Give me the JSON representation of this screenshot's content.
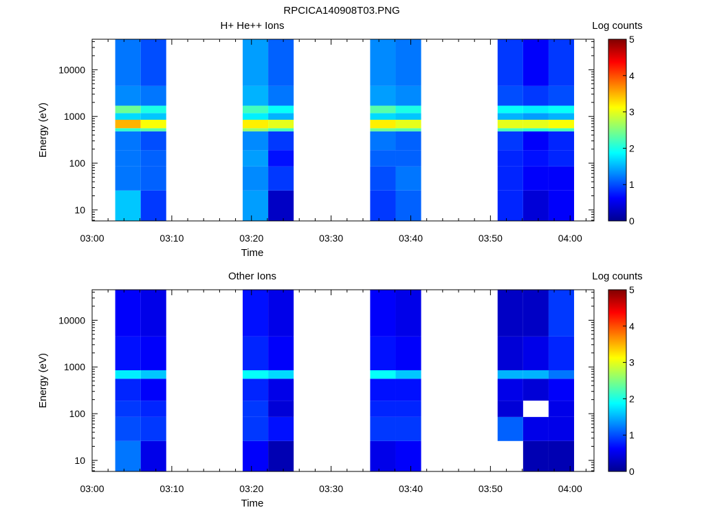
{
  "figure_title": "RPCICA140908T03.PNG",
  "colors": {
    "colormap": [
      "#00008f",
      "#0000ff",
      "#0080ff",
      "#00ffff",
      "#80ff80",
      "#ffff00",
      "#ff8000",
      "#ff0000",
      "#800000"
    ],
    "gap": "#ffffff"
  },
  "chart_data": [
    {
      "type": "heatmap",
      "title": "H+ He++ Ions",
      "xlabel": "Time",
      "ylabel": "Energy (eV)",
      "x_tick_labels": [
        "03:00",
        "03:10",
        "03:20",
        "03:30",
        "03:40",
        "03:50",
        "04:00"
      ],
      "x_ticks_minutes": [
        0,
        10,
        20,
        30,
        40,
        50,
        60
      ],
      "xlim_minutes": [
        0,
        63
      ],
      "y_scale": "log",
      "y_tick_labels": [
        "10",
        "100",
        "1000",
        "10000"
      ],
      "y_ticks": [
        10,
        100,
        1000,
        10000
      ],
      "ylim": [
        5.8,
        45000
      ],
      "colorbar": {
        "label": "Log counts",
        "range": [
          0,
          5
        ],
        "tick_labels": [
          "0",
          "1",
          "2",
          "3",
          "4",
          "5"
        ]
      },
      "energy_bands": [
        {
          "lo": 5.8,
          "hi": 26
        },
        {
          "lo": 26,
          "hi": 85
        },
        {
          "lo": 85,
          "hi": 190
        },
        {
          "lo": 190,
          "hi": 480
        },
        {
          "lo": 480,
          "hi": 560
        },
        {
          "lo": 560,
          "hi": 850
        },
        {
          "lo": 850,
          "hi": 1180
        },
        {
          "lo": 1180,
          "hi": 1700
        },
        {
          "lo": 1700,
          "hi": 4500
        },
        {
          "lo": 4500,
          "hi": 45000
        }
      ],
      "time_bins": [
        {
          "start_min": 2.9,
          "end_min": 6.1,
          "levels": [
            1.6,
            1.2,
            1.2,
            1.2,
            2.1,
            3.5,
            1.7,
            2.4,
            1.3,
            1.2
          ]
        },
        {
          "start_min": 6.1,
          "end_min": 9.3,
          "levels": [
            0.9,
            1.1,
            1.1,
            1.0,
            2.3,
            3.1,
            1.6,
            2.0,
            1.2,
            1.0
          ]
        },
        {
          "start_min": 18.9,
          "end_min": 22.1,
          "levels": [
            1.4,
            1.3,
            1.4,
            1.3,
            2.6,
            3.2,
            1.8,
            2.2,
            1.5,
            1.4
          ]
        },
        {
          "start_min": 22.1,
          "end_min": 25.3,
          "levels": [
            0.3,
            0.9,
            0.7,
            0.9,
            2.2,
            3.0,
            1.5,
            1.9,
            1.2,
            1.1
          ]
        },
        {
          "start_min": 34.9,
          "end_min": 38.1,
          "levels": [
            0.9,
            1.0,
            1.1,
            1.2,
            2.4,
            3.2,
            1.7,
            2.3,
            1.4,
            1.3
          ]
        },
        {
          "start_min": 38.1,
          "end_min": 41.3,
          "levels": [
            1.1,
            1.2,
            1.1,
            1.1,
            2.3,
            3.0,
            1.6,
            2.0,
            1.3,
            1.2
          ]
        },
        {
          "start_min": 50.9,
          "end_min": 54.1,
          "levels": [
            0.8,
            0.8,
            0.8,
            0.9,
            2.2,
            3.0,
            1.5,
            1.9,
            1.0,
            0.9
          ]
        },
        {
          "start_min": 54.1,
          "end_min": 57.3,
          "levels": [
            0.4,
            0.6,
            0.7,
            0.6,
            2.1,
            3.0,
            1.4,
            1.8,
            0.9,
            0.6
          ]
        },
        {
          "start_min": 57.3,
          "end_min": 60.5,
          "levels": [
            0.6,
            0.6,
            0.8,
            0.8,
            2.2,
            3.1,
            1.5,
            1.9,
            1.0,
            0.9
          ]
        }
      ]
    },
    {
      "type": "heatmap",
      "title": "Other Ions",
      "xlabel": "Time",
      "ylabel": "Energy (eV)",
      "x_tick_labels": [
        "03:00",
        "03:10",
        "03:20",
        "03:30",
        "03:40",
        "03:50",
        "04:00"
      ],
      "x_ticks_minutes": [
        0,
        10,
        20,
        30,
        40,
        50,
        60
      ],
      "xlim_minutes": [
        0,
        63
      ],
      "y_scale": "log",
      "y_tick_labels": [
        "10",
        "100",
        "1000",
        "10000"
      ],
      "y_ticks": [
        10,
        100,
        1000,
        10000
      ],
      "ylim": [
        5.8,
        45000
      ],
      "colorbar": {
        "label": "Log counts",
        "range": [
          0,
          5
        ],
        "tick_labels": [
          "0",
          "1",
          "2",
          "3",
          "4",
          "5"
        ]
      },
      "energy_bands": [
        {
          "lo": 5.8,
          "hi": 26
        },
        {
          "lo": 26,
          "hi": 85
        },
        {
          "lo": 85,
          "hi": 190
        },
        {
          "lo": 190,
          "hi": 560
        },
        {
          "lo": 560,
          "hi": 850
        },
        {
          "lo": 850,
          "hi": 4500
        },
        {
          "lo": 4500,
          "hi": 45000
        }
      ],
      "time_bins": [
        {
          "start_min": 2.9,
          "end_min": 6.1,
          "levels": [
            1.2,
            1.0,
            0.9,
            0.8,
            1.8,
            0.7,
            0.6
          ]
        },
        {
          "start_min": 6.1,
          "end_min": 9.3,
          "levels": [
            0.5,
            0.9,
            0.8,
            0.6,
            1.6,
            0.6,
            0.5
          ]
        },
        {
          "start_min": 18.9,
          "end_min": 22.1,
          "levels": [
            0.6,
            0.9,
            0.9,
            0.8,
            1.9,
            0.8,
            0.7
          ]
        },
        {
          "start_min": 22.1,
          "end_min": 25.3,
          "levels": [
            0.2,
            0.7,
            0.4,
            0.5,
            1.7,
            0.6,
            0.5
          ]
        },
        {
          "start_min": 34.9,
          "end_min": 38.1,
          "levels": [
            0.5,
            0.9,
            0.8,
            0.7,
            1.9,
            0.7,
            0.6
          ]
        },
        {
          "start_min": 38.1,
          "end_min": 41.3,
          "levels": [
            0.6,
            0.9,
            0.8,
            0.7,
            1.6,
            0.6,
            0.5
          ]
        },
        {
          "start_min": 50.9,
          "end_min": 54.1,
          "levels": [
            null,
            1.1,
            0.4,
            0.5,
            1.5,
            0.4,
            0.3
          ]
        },
        {
          "start_min": 54.1,
          "end_min": 57.3,
          "levels": [
            0.2,
            0.5,
            null,
            0.4,
            1.5,
            0.5,
            0.3
          ]
        },
        {
          "start_min": 57.3,
          "end_min": 60.5,
          "levels": [
            0.2,
            0.5,
            0.5,
            0.6,
            1.2,
            0.8,
            0.9
          ]
        }
      ]
    }
  ]
}
